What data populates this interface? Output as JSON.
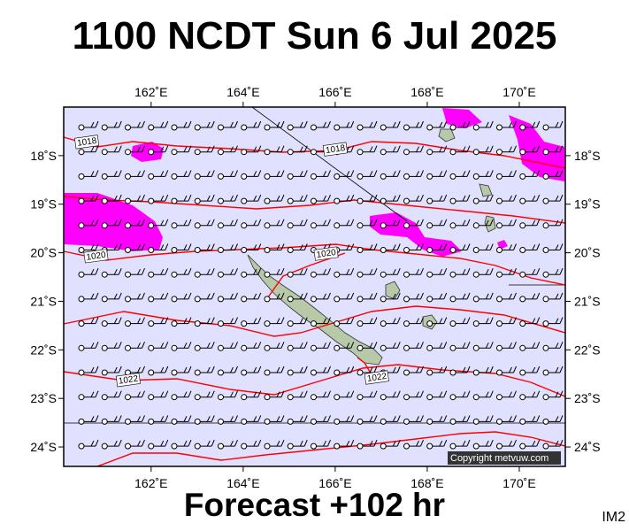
{
  "title": "1100 NCDT Sun 6 Jul 2025",
  "footer": "Forecast +102 hr",
  "image_code": "IM2",
  "copyright": "Copyright metvuw.com",
  "map": {
    "lon_range": [
      160.1,
      171.0
    ],
    "lat_range": [
      -24.4,
      -17.0
    ],
    "lon_ticks": [
      {
        "value": 162,
        "label": "162˚E"
      },
      {
        "value": 164,
        "label": "164˚E"
      },
      {
        "value": 166,
        "label": "166˚E"
      },
      {
        "value": 168,
        "label": "168˚E"
      },
      {
        "value": 170,
        "label": "170˚E"
      }
    ],
    "lat_ticks": [
      {
        "value": -18,
        "label": "18˚S"
      },
      {
        "value": -19,
        "label": "19˚S"
      },
      {
        "value": -20,
        "label": "20˚S"
      },
      {
        "value": -21,
        "label": "21˚S"
      },
      {
        "value": -22,
        "label": "22˚S"
      },
      {
        "value": -23,
        "label": "23˚S"
      },
      {
        "value": -24,
        "label": "24˚S"
      }
    ],
    "isobar_labels": [
      {
        "text": "1018",
        "lon": 160.4,
        "lat": -17.8
      },
      {
        "text": "1018",
        "lon": 165.8,
        "lat": -17.95
      },
      {
        "text": "1020",
        "lon": 160.6,
        "lat": -20.15
      },
      {
        "text": "1020",
        "lon": 165.6,
        "lat": -20.1
      },
      {
        "text": "1022",
        "lon": 161.3,
        "lat": -22.7
      },
      {
        "text": "1022",
        "lon": 166.7,
        "lat": -22.65
      }
    ],
    "colors": {
      "ocean": "#e0e0ff",
      "isobar": "#ff0000",
      "rain": "#ff00ff",
      "land": "#b7c9a8",
      "wind_barb": "#000000"
    }
  }
}
